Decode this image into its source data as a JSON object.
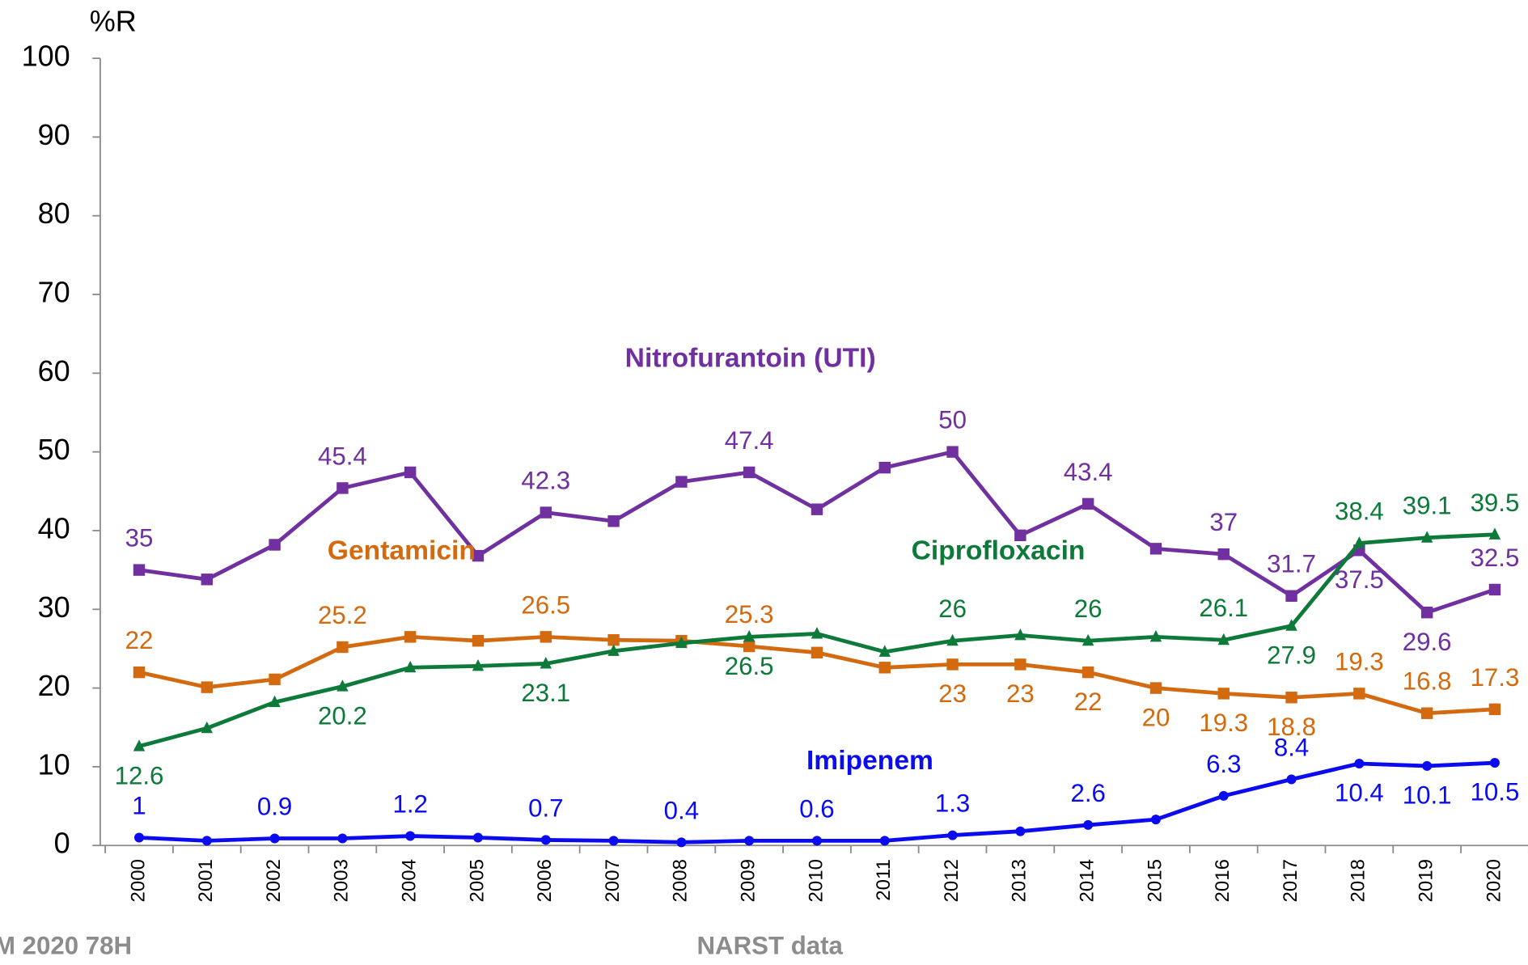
{
  "chart_data": {
    "type": "line",
    "y_label": "%R",
    "categories": [
      "2000",
      "2001",
      "2002",
      "2003",
      "2004",
      "2005",
      "2006",
      "2007",
      "2008",
      "2009",
      "2010",
      "2011",
      "2012",
      "2013",
      "2014",
      "2015",
      "2016",
      "2017",
      "2018",
      "2019",
      "2020"
    ],
    "ylim": [
      0,
      100
    ],
    "yticks": [
      0,
      10,
      20,
      30,
      40,
      50,
      60,
      70,
      80,
      90,
      100
    ],
    "series": [
      {
        "name": "Nitrofurantoin (UTI)",
        "color": "#7030a0",
        "marker": "square",
        "values": [
          35,
          33.8,
          38.2,
          45.4,
          47.4,
          36.8,
          42.3,
          41.2,
          46.2,
          47.4,
          42.7,
          48,
          50,
          39.4,
          43.4,
          37.7,
          37,
          31.7,
          37.5,
          29.6,
          32.5
        ],
        "value_labels": [
          "35",
          null,
          null,
          "45.4",
          null,
          null,
          "42.3",
          null,
          null,
          "47.4",
          null,
          null,
          "50",
          null,
          "43.4",
          null,
          "37",
          "31.7",
          "37.5",
          "29.6",
          "32.5"
        ]
      },
      {
        "name": "Gentamicin",
        "color": "#d46a10",
        "marker": "square",
        "values": [
          22,
          20.1,
          21.1,
          25.2,
          26.5,
          26,
          26.5,
          26.1,
          26,
          25.3,
          24.5,
          22.6,
          23,
          23,
          22,
          20,
          19.3,
          18.8,
          19.3,
          16.8,
          17.3
        ],
        "value_labels": [
          "22",
          null,
          null,
          "25.2",
          null,
          null,
          "26.5",
          null,
          null,
          "25.3",
          null,
          null,
          "23",
          "23",
          "22",
          "20",
          "19.3",
          "18.8",
          "19.3",
          "16.8",
          "17.3"
        ]
      },
      {
        "name": "Ciprofloxacin",
        "color": "#0e7a3a",
        "marker": "triangle",
        "values": [
          12.6,
          14.9,
          18.2,
          20.2,
          22.6,
          22.8,
          23.1,
          24.7,
          25.7,
          26.5,
          26.9,
          24.6,
          26,
          26.7,
          26,
          26.5,
          26.1,
          27.9,
          38.4,
          39.1,
          39.5
        ],
        "value_labels": [
          "12.6",
          null,
          null,
          "20.2",
          null,
          null,
          "23.1",
          null,
          null,
          "26.5",
          null,
          null,
          "26",
          null,
          "26",
          null,
          "26.1",
          "27.9",
          "38.4",
          "39.1",
          "39.5"
        ]
      },
      {
        "name": "Imipenem",
        "color": "#0b0bf0",
        "marker": "diamond",
        "values": [
          1,
          0.6,
          0.9,
          0.9,
          1.2,
          1.0,
          0.7,
          0.6,
          0.4,
          0.6,
          0.6,
          0.6,
          1.3,
          1.8,
          2.6,
          3.3,
          6.3,
          8.4,
          10.4,
          10.1,
          10.5
        ],
        "value_labels": [
          "1",
          null,
          "0.9",
          null,
          "1.2",
          null,
          "0.7",
          null,
          "0.4",
          null,
          "0.6",
          null,
          "1.3",
          null,
          "2.6",
          null,
          "6.3",
          "8.4",
          "10.4",
          "10.1",
          "10.5"
        ]
      }
    ],
    "footer_left": "M 2020 78H",
    "footer_center": "NARST data"
  }
}
